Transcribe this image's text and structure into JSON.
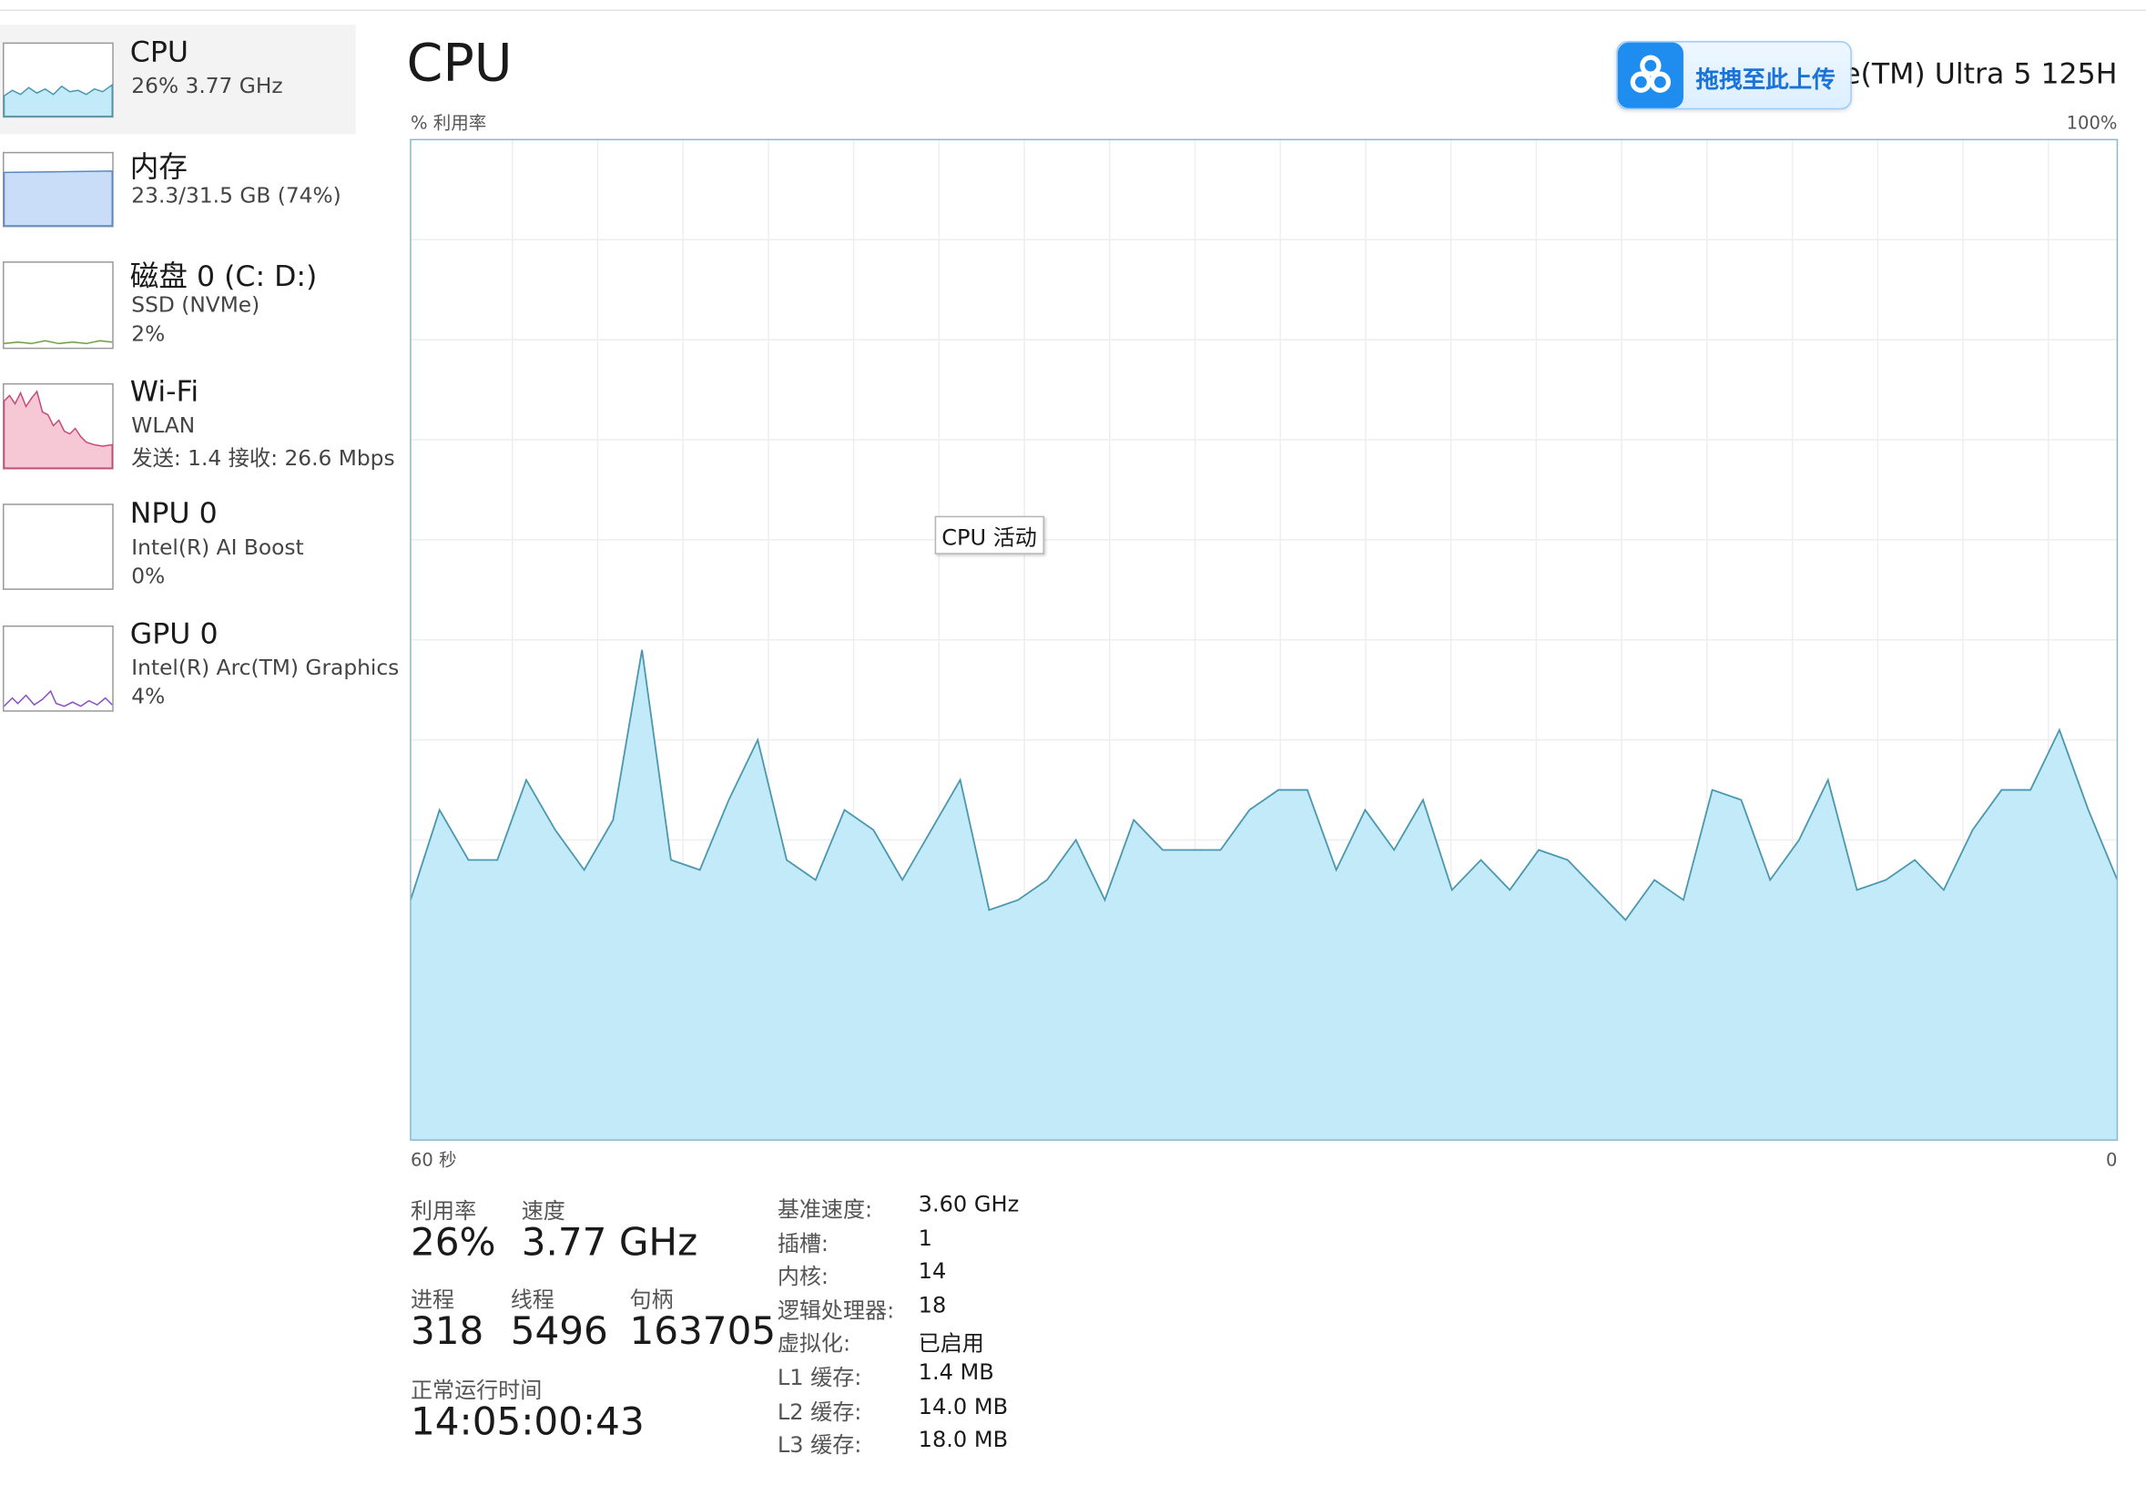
{
  "sidebar": [
    {
      "name": "CPU",
      "line1": "26% 3.77 GHz"
    },
    {
      "name": "内存",
      "line1": "23.3/31.5 GB (74%)"
    },
    {
      "name": "磁盘 0 (C: D:)",
      "line1": "SSD (NVMe)",
      "line2": "2%"
    },
    {
      "name": "Wi-Fi",
      "line1": "WLAN",
      "line2": "发送: 1.4 接收: 26.6 Mbps"
    },
    {
      "name": "NPU 0",
      "line1": "Intel(R) AI Boost",
      "line2": "0%"
    },
    {
      "name": "GPU 0",
      "line1": "Intel(R) Arc(TM) Graphics",
      "line2": "4%"
    }
  ],
  "main": {
    "title": "CPU",
    "processor": "re(TM) Ultra 5 125H",
    "upload_button": "拖拽至此上传",
    "tooltip": "CPU 活动"
  },
  "chart_data": {
    "type": "area",
    "ylabel": "% 利用率",
    "ylim": [
      0,
      100
    ],
    "yticks": [
      {
        "value": 100,
        "label": "100%"
      }
    ],
    "xlim": [
      60,
      0
    ],
    "xticks": [
      {
        "value": 60,
        "label": "60 秒"
      },
      0
    ],
    "grid": true,
    "color": "#c3eaf8",
    "line_color": "#4a97b0",
    "values": [
      24,
      33,
      28,
      28,
      36,
      31,
      27,
      32,
      49,
      28,
      27,
      34,
      40,
      28,
      26,
      33,
      31,
      26,
      31,
      36,
      23,
      24,
      26,
      30,
      24,
      32,
      29,
      29,
      29,
      33,
      35,
      35,
      27,
      33,
      29,
      34,
      25,
      28,
      25,
      29,
      28,
      25,
      22,
      26,
      24,
      35,
      34,
      26,
      30,
      36,
      25,
      26,
      28,
      25,
      31,
      35,
      35,
      41,
      33,
      26
    ]
  },
  "stats": {
    "utilization": {
      "label": "利用率",
      "value": "26%"
    },
    "speed": {
      "label": "速度",
      "value": "3.77 GHz"
    },
    "processes": {
      "label": "进程",
      "value": "318"
    },
    "threads": {
      "label": "线程",
      "value": "5496"
    },
    "handles": {
      "label": "句柄",
      "value": "163705"
    },
    "uptime": {
      "label": "正常运行时间",
      "value": "14:05:00:43"
    }
  },
  "details": [
    [
      "基准速度:",
      "3.60 GHz"
    ],
    [
      "插槽:",
      "1"
    ],
    [
      "内核:",
      "14"
    ],
    [
      "逻辑处理器:",
      "18"
    ],
    [
      "虚拟化:",
      "已启用"
    ],
    [
      "L1 缓存:",
      "1.4 MB"
    ],
    [
      "L2 缓存:",
      "14.0 MB"
    ],
    [
      "L3 缓存:",
      "18.0 MB"
    ]
  ]
}
